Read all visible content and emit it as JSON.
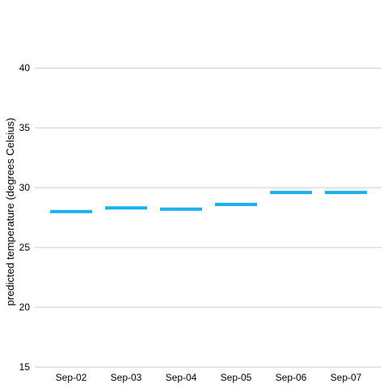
{
  "chart_data": {
    "type": "bar",
    "subtype": "floating-level-markers",
    "categories": [
      "Sep-02",
      "Sep-03",
      "Sep-04",
      "Sep-05",
      "Sep-06",
      "Sep-07"
    ],
    "series": [
      {
        "values": [
          28.0,
          28.3,
          28.2,
          28.6,
          29.6,
          29.6
        ]
      }
    ],
    "ylabel": "predicted temperature (degrees Celsius)",
    "xlabel": "",
    "ylim": [
      14.6,
      41.5
    ],
    "yticks": [
      15,
      20,
      25,
      30,
      35,
      40
    ],
    "grid": true,
    "legend": "none",
    "colors": {
      "series": "#1aaff0",
      "grid": "#cccccc",
      "text": "#000000"
    }
  }
}
